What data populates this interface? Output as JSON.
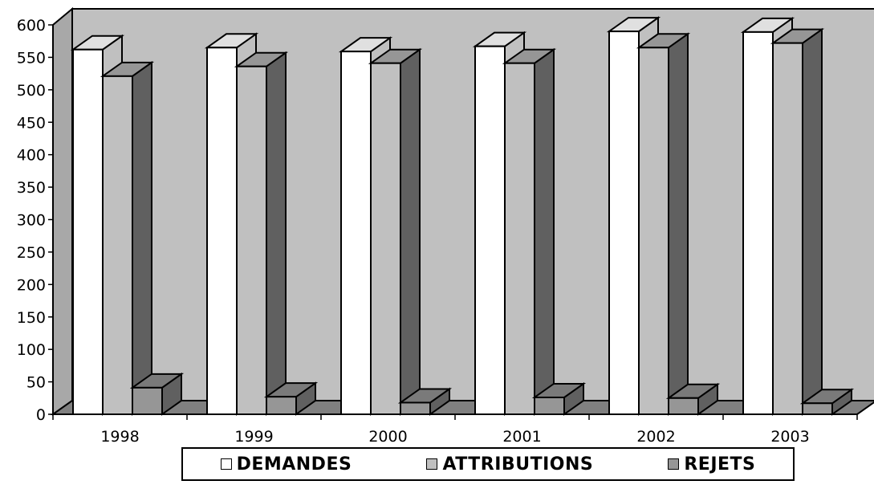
{
  "chart_data": {
    "type": "bar",
    "three_d": true,
    "categories": [
      "1998",
      "1999",
      "2000",
      "2001",
      "2002",
      "2003"
    ],
    "series": [
      {
        "name": "DEMANDES",
        "values": [
          562,
          565,
          559,
          567,
          590,
          589
        ],
        "color": "#ffffff",
        "side_color": "#c0c0c0",
        "top_color": "#e0e0e0"
      },
      {
        "name": "ATTRIBUTIONS",
        "values": [
          521,
          536,
          541,
          541,
          565,
          572
        ],
        "color": "#c0c0c0",
        "side_color": "#606060",
        "top_color": "#969696"
      },
      {
        "name": "REJETS",
        "values": [
          41,
          27,
          18,
          26,
          25,
          17
        ],
        "color": "#969696",
        "side_color": "#606060",
        "top_color": "#7a7a7a"
      }
    ],
    "y_ticks": [
      "0",
      "50",
      "100",
      "150",
      "200",
      "250",
      "300",
      "350",
      "400",
      "450",
      "500",
      "550",
      "600"
    ],
    "ylim": [
      0,
      600
    ],
    "background_color": "#c0c0c0",
    "floor_color": "#808080",
    "legend_position": "bottom"
  }
}
